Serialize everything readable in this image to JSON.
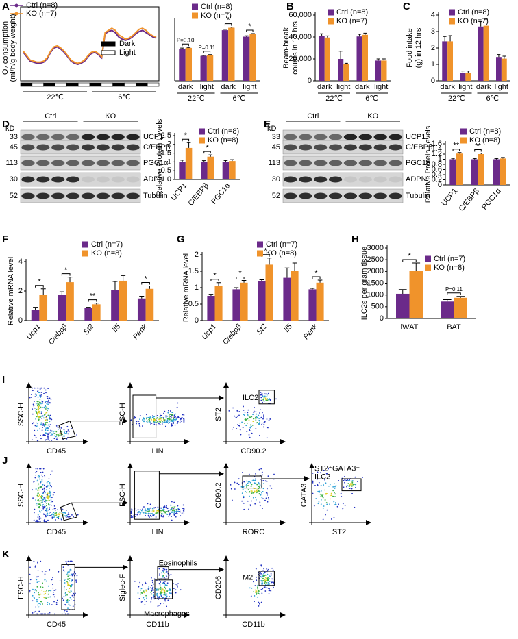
{
  "panel_labels": [
    "A",
    "B",
    "C",
    "D",
    "E",
    "F",
    "G",
    "H",
    "I",
    "J",
    "K"
  ],
  "chart_data": [
    {
      "type": "line",
      "y_label": [
        "O₂ consumption",
        "(ml/h/g body weight)"
      ],
      "series": [
        {
          "name": "Ctrl (n=8)",
          "color": "#6b2a8a",
          "values": [
            4.6,
            4.2,
            3.8,
            3.7,
            3.6,
            3.6,
            3.7,
            4.0,
            4.6,
            5.0,
            5.1,
            4.9,
            4.6,
            4.2,
            3.8,
            3.6,
            3.5,
            3.6,
            3.8,
            4.2,
            4.5,
            4.6,
            4.4,
            4.1,
            6.3,
            6.5,
            6.6,
            6.4,
            6.0,
            5.8,
            5.7,
            5.8,
            6.0,
            6.3,
            6.5,
            6.6,
            6.4,
            6.2,
            6.0,
            5.9
          ]
        },
        {
          "name": "KO (n=7)",
          "color": "#f0932b",
          "values": [
            4.7,
            4.3,
            3.9,
            3.8,
            3.7,
            3.7,
            3.8,
            4.1,
            4.7,
            5.1,
            5.2,
            5.0,
            4.7,
            4.3,
            3.9,
            3.7,
            3.6,
            3.7,
            3.9,
            4.3,
            4.6,
            4.7,
            4.5,
            4.2,
            6.4,
            6.6,
            6.8,
            6.6,
            6.2,
            6.0,
            5.8,
            5.9,
            6.1,
            6.4,
            6.7,
            6.8,
            6.6,
            6.3,
            6.1,
            6.0
          ]
        }
      ],
      "ylim": [
        2,
        8
      ],
      "cycle_legend": [
        "Dark",
        "Light"
      ],
      "group_labels": [
        "22℃",
        "6℃"
      ]
    },
    {
      "type": "bar",
      "categories": [
        "dark",
        "light",
        "dark",
        "light"
      ],
      "group_labels": [
        "22℃",
        "6℃"
      ],
      "series": [
        {
          "name": "Ctrl (n=8)",
          "color": "#6b2a8a",
          "values": [
            4.0,
            3.1,
            6.3,
            5.5
          ],
          "errors": [
            0.08,
            0.06,
            0.1,
            0.1
          ]
        },
        {
          "name": "KO (n=7)",
          "color": "#f0932b",
          "values": [
            4.1,
            3.2,
            6.6,
            5.8
          ],
          "errors": [
            0.06,
            0.06,
            0.08,
            0.08
          ]
        }
      ],
      "ylim": [
        0,
        7.5
      ],
      "significance": [
        "P=0.10",
        "P=0.11",
        "*",
        "*"
      ]
    },
    {
      "type": "bar",
      "y_label": [
        "Beam-break",
        "counts in 12 hrs"
      ],
      "categories": [
        "dark",
        "light",
        "dark",
        "light"
      ],
      "group_labels": [
        "22℃",
        "6℃"
      ],
      "series": [
        {
          "name": "Ctrl (n=8)",
          "color": "#6b2a8a",
          "values": [
            41000,
            20000,
            40500,
            18500
          ],
          "errors": [
            2000,
            7000,
            2000,
            1500
          ]
        },
        {
          "name": "KO (n=7)",
          "color": "#f0932b",
          "values": [
            39500,
            15000,
            42000,
            18500
          ],
          "errors": [
            1500,
            1000,
            1500,
            1500
          ]
        }
      ],
      "ylim": [
        0,
        60000
      ],
      "yticks": [
        0,
        {
          "value": 20000,
          "label": "20,000"
        },
        {
          "value": 40000,
          "label": "40,000"
        },
        {
          "value": 60000,
          "label": "60,000"
        }
      ]
    },
    {
      "type": "bar",
      "y_label": [
        "Food intake",
        "(g) in 12 hrs"
      ],
      "categories": [
        "dark",
        "light",
        "dark",
        "light"
      ],
      "group_labels": [
        "22℃",
        "6℃"
      ],
      "series": [
        {
          "name": "Ctrl (n=8)",
          "color": "#6b2a8a",
          "values": [
            2.4,
            0.5,
            3.3,
            1.45
          ],
          "errors": [
            0.3,
            0.1,
            0.3,
            0.15
          ]
        },
        {
          "name": "KO (n=7)",
          "color": "#f0932b",
          "values": [
            2.4,
            0.5,
            3.35,
            1.35
          ],
          "errors": [
            0.35,
            0.1,
            0.4,
            0.15
          ]
        }
      ],
      "ylim": [
        0,
        4
      ],
      "yticks": [
        0,
        1,
        2,
        3,
        4
      ]
    },
    {
      "type": "bar",
      "y_label": [
        "Relative Protein Levels"
      ],
      "categories": [
        "UCP1",
        "C/EBPβ",
        "PGC1α"
      ],
      "series": [
        {
          "name": "Ctrl (n=8)",
          "color": "#6b2a8a",
          "values": [
            1,
            1,
            1
          ],
          "errors": [
            0.1,
            0.07,
            0.08
          ]
        },
        {
          "name": "KO (n=8)",
          "color": "#f0932b",
          "values": [
            1.8,
            1.3,
            1.05
          ],
          "errors": [
            0.3,
            0.1,
            0.08
          ]
        }
      ],
      "ylim": [
        0,
        2.5
      ],
      "yticks": [
        0,
        0.5,
        1,
        1.5,
        2,
        2.5
      ],
      "significance": [
        "*",
        "*",
        null
      ]
    },
    {
      "type": "bar",
      "y_label": [
        "Relative Protein Levels"
      ],
      "categories": [
        "UCP1",
        "C/EBPβ",
        "PGC1α"
      ],
      "series": [
        {
          "name": "Ctrl (n=8)",
          "color": "#6b2a8a",
          "values": [
            1,
            1,
            1
          ],
          "errors": [
            0.04,
            0.03,
            0.03
          ]
        },
        {
          "name": "KO (n=8)",
          "color": "#f0932b",
          "values": [
            1.22,
            1.2,
            1.03
          ],
          "errors": [
            0.04,
            0.04,
            0.04
          ]
        }
      ],
      "ylim": [
        0,
        1.6
      ],
      "yticks": [
        0,
        0.2,
        0.4,
        0.6,
        0.8,
        1,
        1.2,
        1.4,
        1.6
      ],
      "significance": [
        "**",
        "**",
        null
      ]
    },
    {
      "type": "bar",
      "y_label": [
        "Relative mRNA level"
      ],
      "categories": [
        "Ucp1",
        "C/ebpβ",
        "St2",
        "Il5",
        "Penk"
      ],
      "italic_categories": true,
      "series": [
        {
          "name": "Ctrl (n=7)",
          "color": "#6b2a8a",
          "values": [
            0.7,
            1.75,
            0.85,
            2.05,
            1.5
          ],
          "errors": [
            0.2,
            0.2,
            0.05,
            0.6,
            0.15
          ]
        },
        {
          "name": "KO (n=8)",
          "color": "#f0932b",
          "values": [
            1.75,
            2.6,
            1.1,
            2.7,
            2.15
          ],
          "errors": [
            0.4,
            0.35,
            0.08,
            0.35,
            0.2
          ]
        }
      ],
      "ylim": [
        0,
        4
      ],
      "yticks": [
        0,
        2,
        4
      ],
      "significance": [
        "*",
        "*",
        "**",
        null,
        "*"
      ]
    },
    {
      "type": "bar",
      "y_label": [
        "Relative mRNA level"
      ],
      "categories": [
        "Ucp1",
        "C/ebpβ",
        "St2",
        "Il5",
        "Penk"
      ],
      "italic_categories": true,
      "series": [
        {
          "name": "Ctrl (n=7)",
          "color": "#6b2a8a",
          "values": [
            0.75,
            0.95,
            1.2,
            1.3,
            0.95
          ],
          "errors": [
            0.05,
            0.05,
            0.04,
            0.3,
            0.03
          ]
        },
        {
          "name": "KO (n=8)",
          "color": "#f0932b",
          "values": [
            1.05,
            1.15,
            1.7,
            1.5,
            1.15
          ],
          "errors": [
            0.1,
            0.07,
            0.2,
            0.25,
            0.08
          ]
        }
      ],
      "ylim": [
        0,
        2
      ],
      "yticks": [
        0,
        0.5,
        1,
        1.5,
        2
      ],
      "significance": [
        "*",
        "*",
        "*",
        null,
        "*"
      ]
    },
    {
      "type": "bar",
      "y_label": [
        "ILC2s per gram tissue"
      ],
      "categories": [
        "iWAT",
        "BAT"
      ],
      "series": [
        {
          "name": "Ctrl (n=7)",
          "color": "#6b2a8a",
          "values": [
            1050,
            720
          ],
          "errors": [
            180,
            80
          ]
        },
        {
          "name": "KO (n=8)",
          "color": "#f0932b",
          "values": [
            2030,
            880
          ],
          "errors": [
            330,
            60
          ]
        }
      ],
      "ylim": [
        0,
        3000
      ],
      "yticks": [
        0,
        500,
        1000,
        1500,
        2000,
        2500,
        3000
      ],
      "significance": [
        "*",
        "P=0.11"
      ]
    }
  ],
  "blots": [
    {
      "unit": "kD",
      "groups": [
        "Ctrl",
        "KO"
      ],
      "markers": [
        "33",
        "45",
        "113",
        "30",
        "52"
      ],
      "proteins": [
        "UCP1",
        "C/EBPβ",
        "PGC1α",
        "ADPN",
        "Tubulin"
      ]
    },
    {
      "unit": "kD",
      "groups": [
        "Ctrl",
        "KO"
      ],
      "markers": [
        "33",
        "45",
        "113",
        "30",
        "52"
      ],
      "proteins": [
        "UCP1",
        "C/EBPβ",
        "PGC1α",
        "ADPN",
        "Tubulin"
      ]
    }
  ],
  "flow": [
    {
      "plots": [
        {
          "y": "SSC-H",
          "x": "CD45"
        },
        {
          "y": "FSC-H",
          "x": "LIN"
        },
        {
          "y": "ST2",
          "x": "CD90.2",
          "gates": [
            "ILC2"
          ]
        }
      ]
    },
    {
      "plots": [
        {
          "y": "SSC-H",
          "x": "CD45"
        },
        {
          "y": "FSC-H",
          "x": "LIN"
        },
        {
          "y": "CD90.2",
          "x": "RORC"
        },
        {
          "y": "GATA3",
          "x": "ST2",
          "gates": [
            "ST2⁺GATA3⁺",
            "ILC2"
          ]
        }
      ]
    },
    {
      "plots": [
        {
          "y": "FSC-H",
          "x": "CD45"
        },
        {
          "y": "Siglec-F",
          "x": "CD11b",
          "gates": [
            "Eosinophils",
            "Macrophages"
          ]
        },
        {
          "y": "CD206",
          "x": "CD11b",
          "gates": [
            "M2"
          ]
        }
      ]
    }
  ]
}
